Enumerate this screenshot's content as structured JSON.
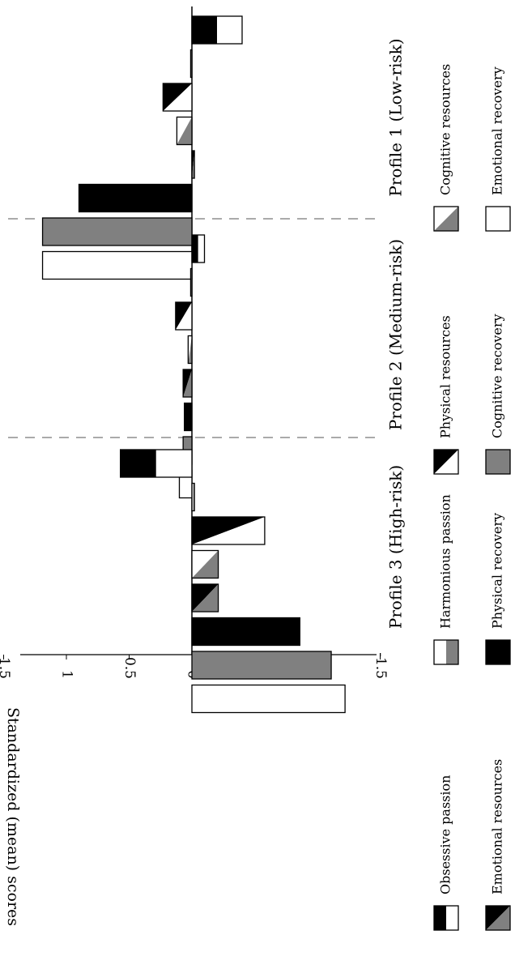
{
  "chart_data": {
    "type": "bar",
    "orientation": "rotated-90-clockwise",
    "ylabel": "Standardized (mean) scores",
    "ylim": [
      -1.5,
      1.5
    ],
    "yticks": [
      {
        "v": 1.5,
        "label": "1.5"
      },
      {
        "v": 1,
        "label": "1"
      },
      {
        "v": 0.5,
        "label": "0.5"
      },
      {
        "v": 0,
        "label": "0"
      },
      {
        "v": -0.5,
        "label": "-0.5"
      },
      {
        "v": -1,
        "label": "-1"
      },
      {
        "v": -1.5,
        "label": "-1.5"
      }
    ],
    "categories": [
      "Profile 1 (Low-risk)",
      "Profile 2 (Medium-risk)",
      "Profile 3 (High-risk)"
    ],
    "series": [
      {
        "name": "Obsessive passion",
        "pattern": "white-top-black-bottom",
        "values": [
          -0.4,
          -0.1,
          0.57
        ]
      },
      {
        "name": "Harmonious passion",
        "pattern": "gray-top-white-bottom",
        "values": [
          0.01,
          0.01,
          -0.02
        ]
      },
      {
        "name": "Physical resources",
        "pattern": "diagonal-black-white",
        "values": [
          0.23,
          0.13,
          -0.58
        ]
      },
      {
        "name": "Cognitive resources",
        "pattern": "diagonal-white-gray",
        "values": [
          0.12,
          0.03,
          -0.21
        ]
      },
      {
        "name": "Emotional resources",
        "pattern": "diagonal-gray-black",
        "values": [
          -0.02,
          0.07,
          -0.21
        ]
      },
      {
        "name": "Physical recovery",
        "pattern": "black",
        "values": [
          0.9,
          0.06,
          -0.86
        ]
      },
      {
        "name": "Cognitive recovery",
        "pattern": "gray",
        "values": [
          1.19,
          0.07,
          -1.11
        ]
      },
      {
        "name": "Emotional recovery",
        "pattern": "white",
        "values": [
          1.19,
          0.1,
          -1.22
        ]
      }
    ],
    "legend_position": "right"
  }
}
